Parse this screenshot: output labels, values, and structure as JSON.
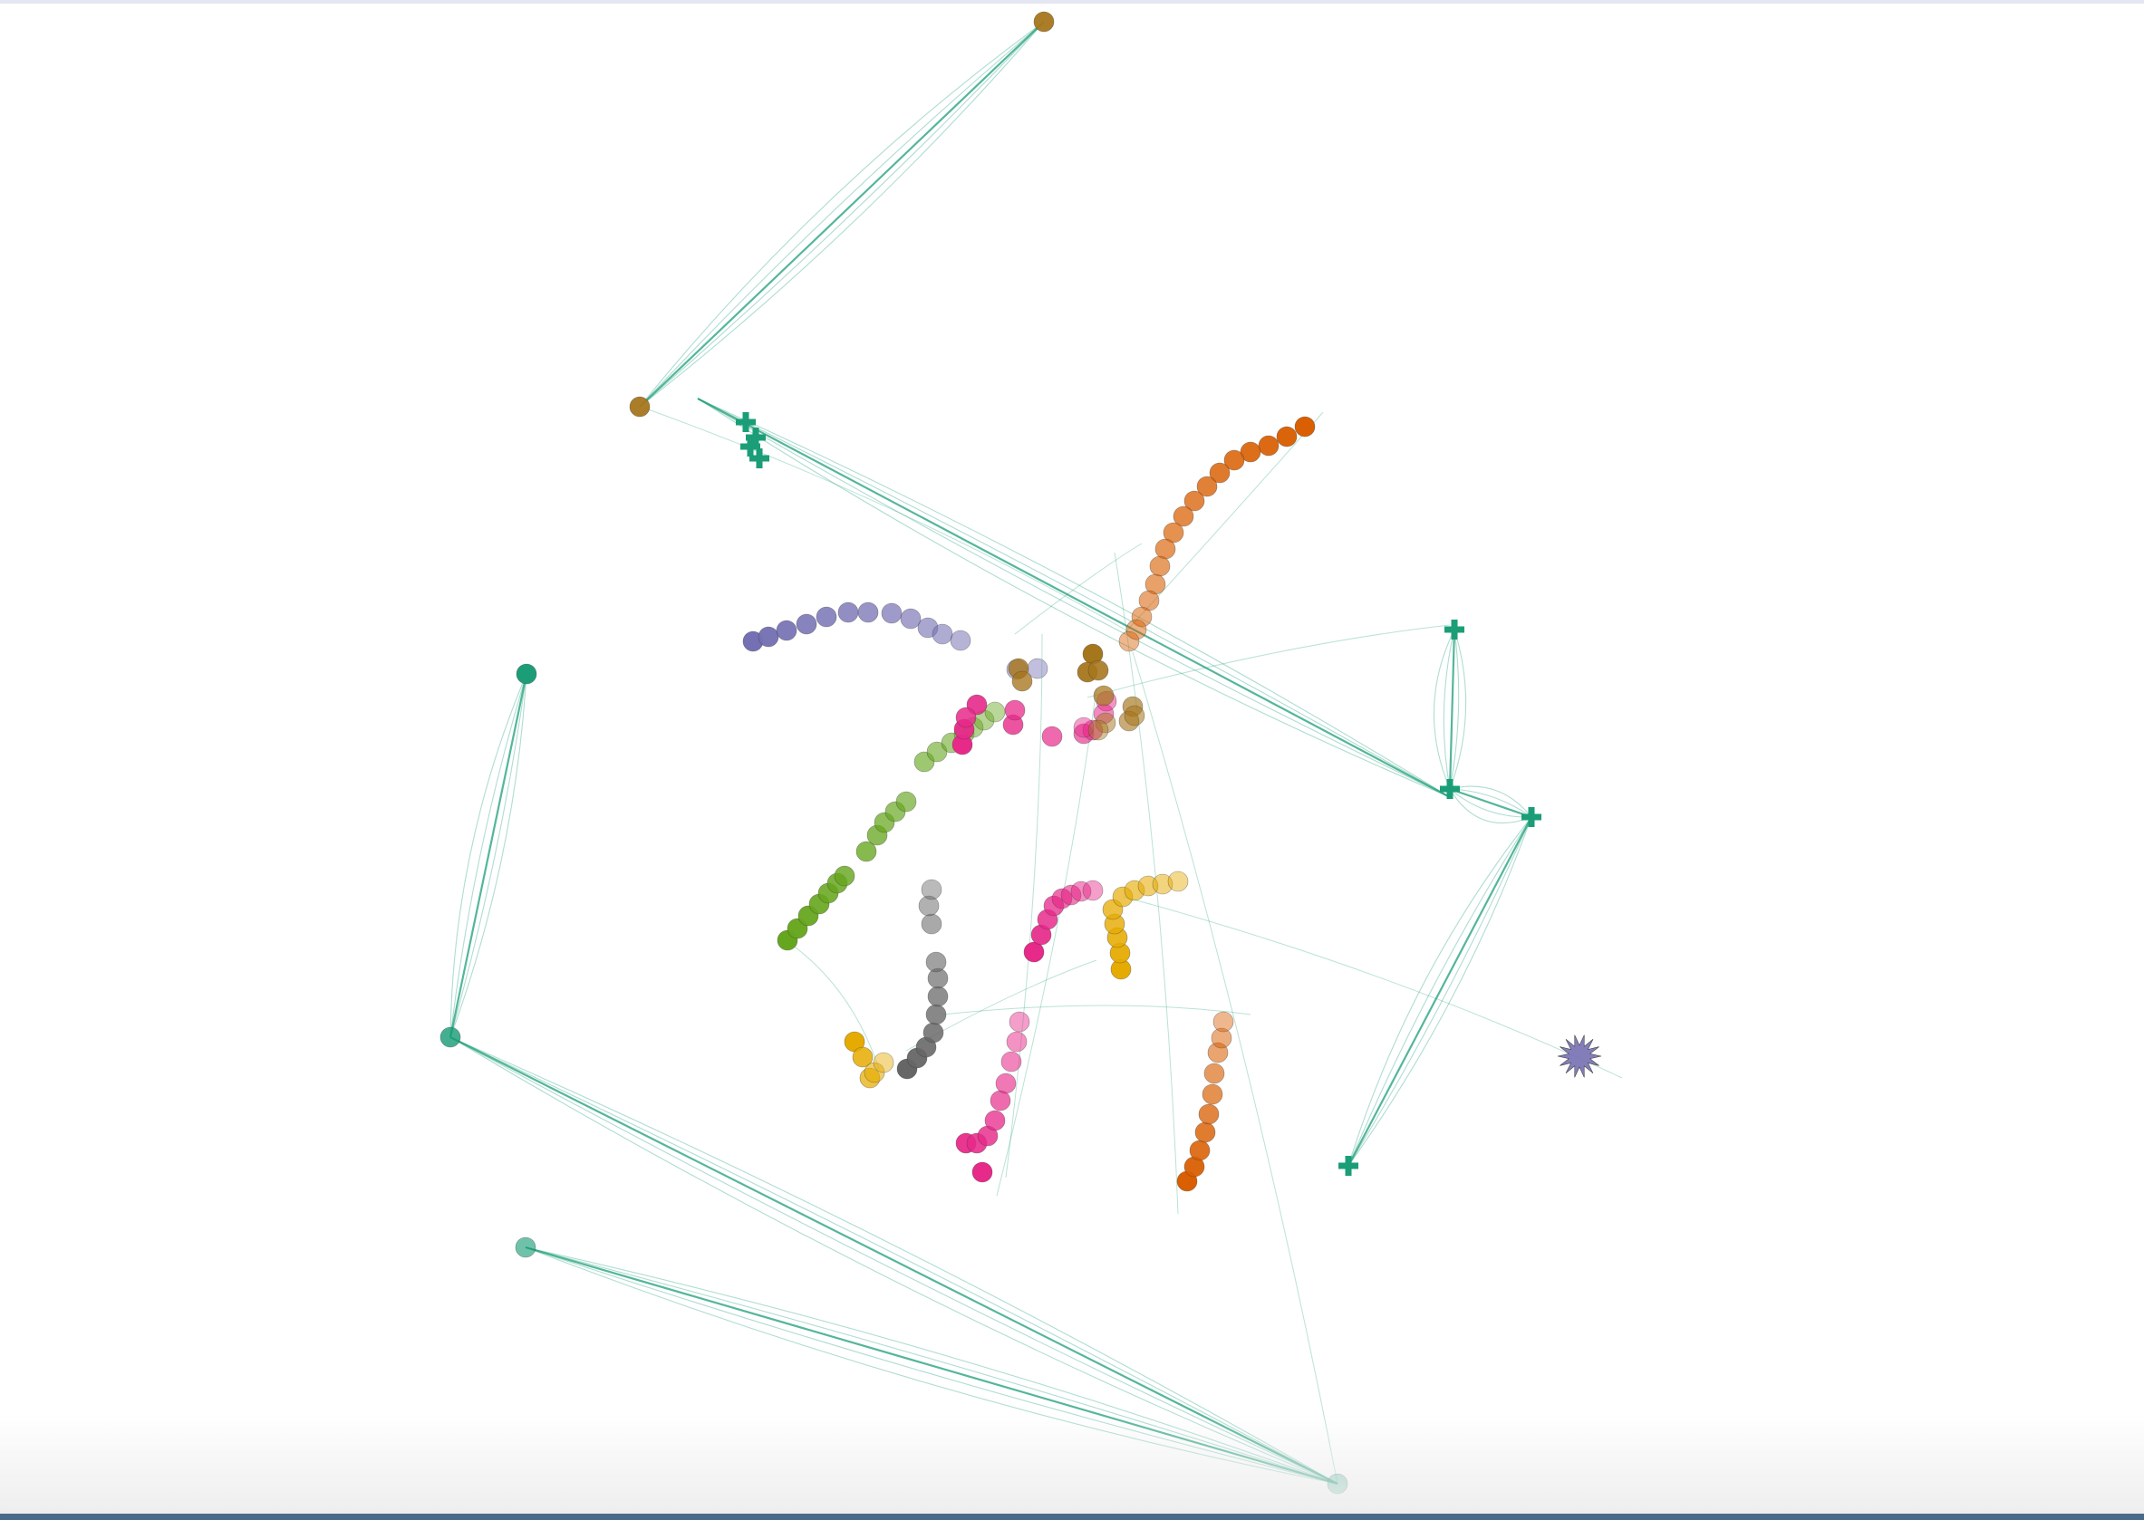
{
  "chart_data": {
    "type": "scatter",
    "subtype": "graph-embedding-trajectories",
    "title": "",
    "xlabel": "",
    "ylabel": "",
    "axes_visible": false,
    "grid": false,
    "legend": "none",
    "palette": {
      "teal": "#1b9e77",
      "orange": "#d95f02",
      "purple": "#7570b3",
      "magenta": "#e7298a",
      "green": "#66a61e",
      "yellow": "#e6ab02",
      "brown": "#a6761d",
      "gray": "#666666",
      "edge": "#1b9e77"
    },
    "series": [
      {
        "id": "orange-upper",
        "color": "orange",
        "shape": "circle",
        "points": [
          [
            1440,
            471
          ],
          [
            1420,
            482
          ],
          [
            1400,
            492
          ],
          [
            1380,
            499
          ],
          [
            1362,
            508
          ],
          [
            1346,
            522
          ],
          [
            1332,
            537
          ],
          [
            1318,
            553
          ],
          [
            1306,
            570
          ],
          [
            1295,
            588
          ],
          [
            1286,
            606
          ],
          [
            1280,
            625
          ],
          [
            1275,
            645
          ],
          [
            1268,
            663
          ],
          [
            1260,
            681
          ],
          [
            1254,
            695
          ],
          [
            1246,
            708
          ]
        ]
      },
      {
        "id": "purple-arc",
        "color": "purple",
        "shape": "circle",
        "points": [
          [
            831,
            708
          ],
          [
            848,
            703
          ],
          [
            868,
            696
          ],
          [
            890,
            689
          ],
          [
            912,
            681
          ],
          [
            936,
            676
          ],
          [
            958,
            676
          ],
          [
            984,
            677
          ],
          [
            1005,
            683
          ],
          [
            1024,
            693
          ],
          [
            1040,
            700
          ],
          [
            1060,
            707
          ],
          [
            1122,
            739
          ],
          [
            1145,
            738
          ]
        ]
      },
      {
        "id": "green-mid",
        "color": "green",
        "shape": "circle",
        "points": [
          [
            869,
            1038
          ],
          [
            880,
            1025
          ],
          [
            892,
            1011
          ],
          [
            904,
            998
          ],
          [
            914,
            986
          ],
          [
            924,
            975
          ],
          [
            932,
            967
          ],
          [
            956,
            940
          ],
          [
            968,
            922
          ],
          [
            976,
            908
          ],
          [
            988,
            896
          ],
          [
            1000,
            885
          ],
          [
            1020,
            841
          ],
          [
            1034,
            830
          ],
          [
            1050,
            820
          ],
          [
            1064,
            810
          ],
          [
            1074,
            803
          ],
          [
            1086,
            795
          ],
          [
            1098,
            786
          ]
        ]
      },
      {
        "id": "magenta-upper",
        "color": "magenta",
        "shape": "circle",
        "points": [
          [
            1062,
            822
          ],
          [
            1064,
            805
          ],
          [
            1078,
            778
          ],
          [
            1066,
            792
          ],
          [
            1118,
            800
          ],
          [
            1120,
            784
          ],
          [
            1161,
            813
          ],
          [
            1196,
            810
          ],
          [
            1206,
            806
          ],
          [
            1218,
            788
          ],
          [
            1221,
            774
          ],
          [
            1196,
            803
          ]
        ]
      },
      {
        "id": "gray-mid",
        "color": "gray",
        "shape": "circle",
        "points": [
          [
            1001,
            1180
          ],
          [
            1012,
            1168
          ],
          [
            1022,
            1156
          ],
          [
            1030,
            1140
          ],
          [
            1033,
            1120
          ],
          [
            1035,
            1100
          ],
          [
            1035,
            1080
          ],
          [
            1033,
            1062
          ],
          [
            1028,
            1020
          ],
          [
            1025,
            1000
          ],
          [
            1028,
            982
          ]
        ]
      },
      {
        "id": "magenta-mid",
        "color": "magenta",
        "shape": "circle",
        "points": [
          [
            1141,
            1051
          ],
          [
            1149,
            1032
          ],
          [
            1156,
            1015
          ],
          [
            1163,
            1000
          ],
          [
            1172,
            992
          ],
          [
            1182,
            988
          ],
          [
            1193,
            984
          ],
          [
            1206,
            983
          ]
        ]
      },
      {
        "id": "yellow-mid",
        "color": "yellow",
        "shape": "circle",
        "points": [
          [
            1237,
            1070
          ],
          [
            1236,
            1052
          ],
          [
            1233,
            1035
          ],
          [
            1230,
            1020
          ],
          [
            1228,
            1004
          ],
          [
            1239,
            990
          ],
          [
            1252,
            983
          ],
          [
            1267,
            978
          ],
          [
            1283,
            976
          ],
          [
            1300,
            973
          ]
        ]
      },
      {
        "id": "magenta-lower",
        "color": "magenta",
        "shape": "circle",
        "points": [
          [
            1084,
            1294
          ],
          [
            1066,
            1262
          ],
          [
            1078,
            1262
          ],
          [
            1090,
            1254
          ],
          [
            1098,
            1237
          ],
          [
            1104,
            1215
          ],
          [
            1110,
            1196
          ],
          [
            1116,
            1172
          ],
          [
            1122,
            1150
          ],
          [
            1125,
            1128
          ]
        ]
      },
      {
        "id": "orange-lower",
        "color": "orange",
        "shape": "circle",
        "points": [
          [
            1310,
            1304
          ],
          [
            1318,
            1288
          ],
          [
            1324,
            1270
          ],
          [
            1330,
            1250
          ],
          [
            1334,
            1230
          ],
          [
            1338,
            1208
          ],
          [
            1340,
            1185
          ],
          [
            1344,
            1162
          ],
          [
            1348,
            1146
          ],
          [
            1350,
            1128
          ]
        ]
      },
      {
        "id": "small-cluster",
        "color": "yellow",
        "shape": "circle",
        "points": [
          [
            943,
            1150
          ],
          [
            952,
            1167
          ],
          [
            960,
            1190
          ],
          [
            965,
            1184
          ],
          [
            975,
            1173
          ]
        ]
      },
      {
        "id": "center-cluster",
        "color": "brown",
        "shape": "circle",
        "points": [
          [
            1206,
            722
          ],
          [
            1200,
            742
          ],
          [
            1212,
            740
          ],
          [
            1124,
            738
          ],
          [
            1128,
            752
          ],
          [
            1218,
            768
          ],
          [
            1250,
            780
          ],
          [
            1246,
            796
          ],
          [
            1252,
            790
          ],
          [
            1220,
            798
          ],
          [
            1212,
            806
          ]
        ]
      },
      {
        "id": "brown-pair",
        "color": "brown",
        "shape": "circle",
        "points": [
          [
            1152,
            24
          ],
          [
            706,
            449
          ]
        ]
      },
      {
        "id": "teal-circles",
        "color": "teal",
        "shape": "circle",
        "points": [
          [
            581,
            744
          ],
          [
            497,
            1145
          ],
          [
            580,
            1377
          ],
          [
            1476,
            1638
          ]
        ]
      },
      {
        "id": "teal-crosses",
        "color": "teal",
        "shape": "cross",
        "points": [
          [
            823,
            466
          ],
          [
            834,
            483
          ],
          [
            828,
            493
          ],
          [
            838,
            506
          ],
          [
            1605,
            695
          ],
          [
            1600,
            871
          ],
          [
            1690,
            902
          ],
          [
            1488,
            1287
          ]
        ]
      },
      {
        "id": "purple-star",
        "color": "purple",
        "shape": "star",
        "points": [
          [
            1743,
            1166
          ]
        ]
      }
    ],
    "edges": [
      [
        1152,
        24,
        706,
        449
      ],
      [
        581,
        744,
        497,
        1145
      ],
      [
        497,
        1145,
        1476,
        1638
      ],
      [
        580,
        1377,
        1476,
        1638
      ],
      [
        1605,
        695,
        1600,
        871
      ],
      [
        1600,
        871,
        1690,
        902
      ],
      [
        1690,
        902,
        1488,
        1287
      ],
      [
        770,
        440,
        1600,
        880
      ]
    ]
  }
}
